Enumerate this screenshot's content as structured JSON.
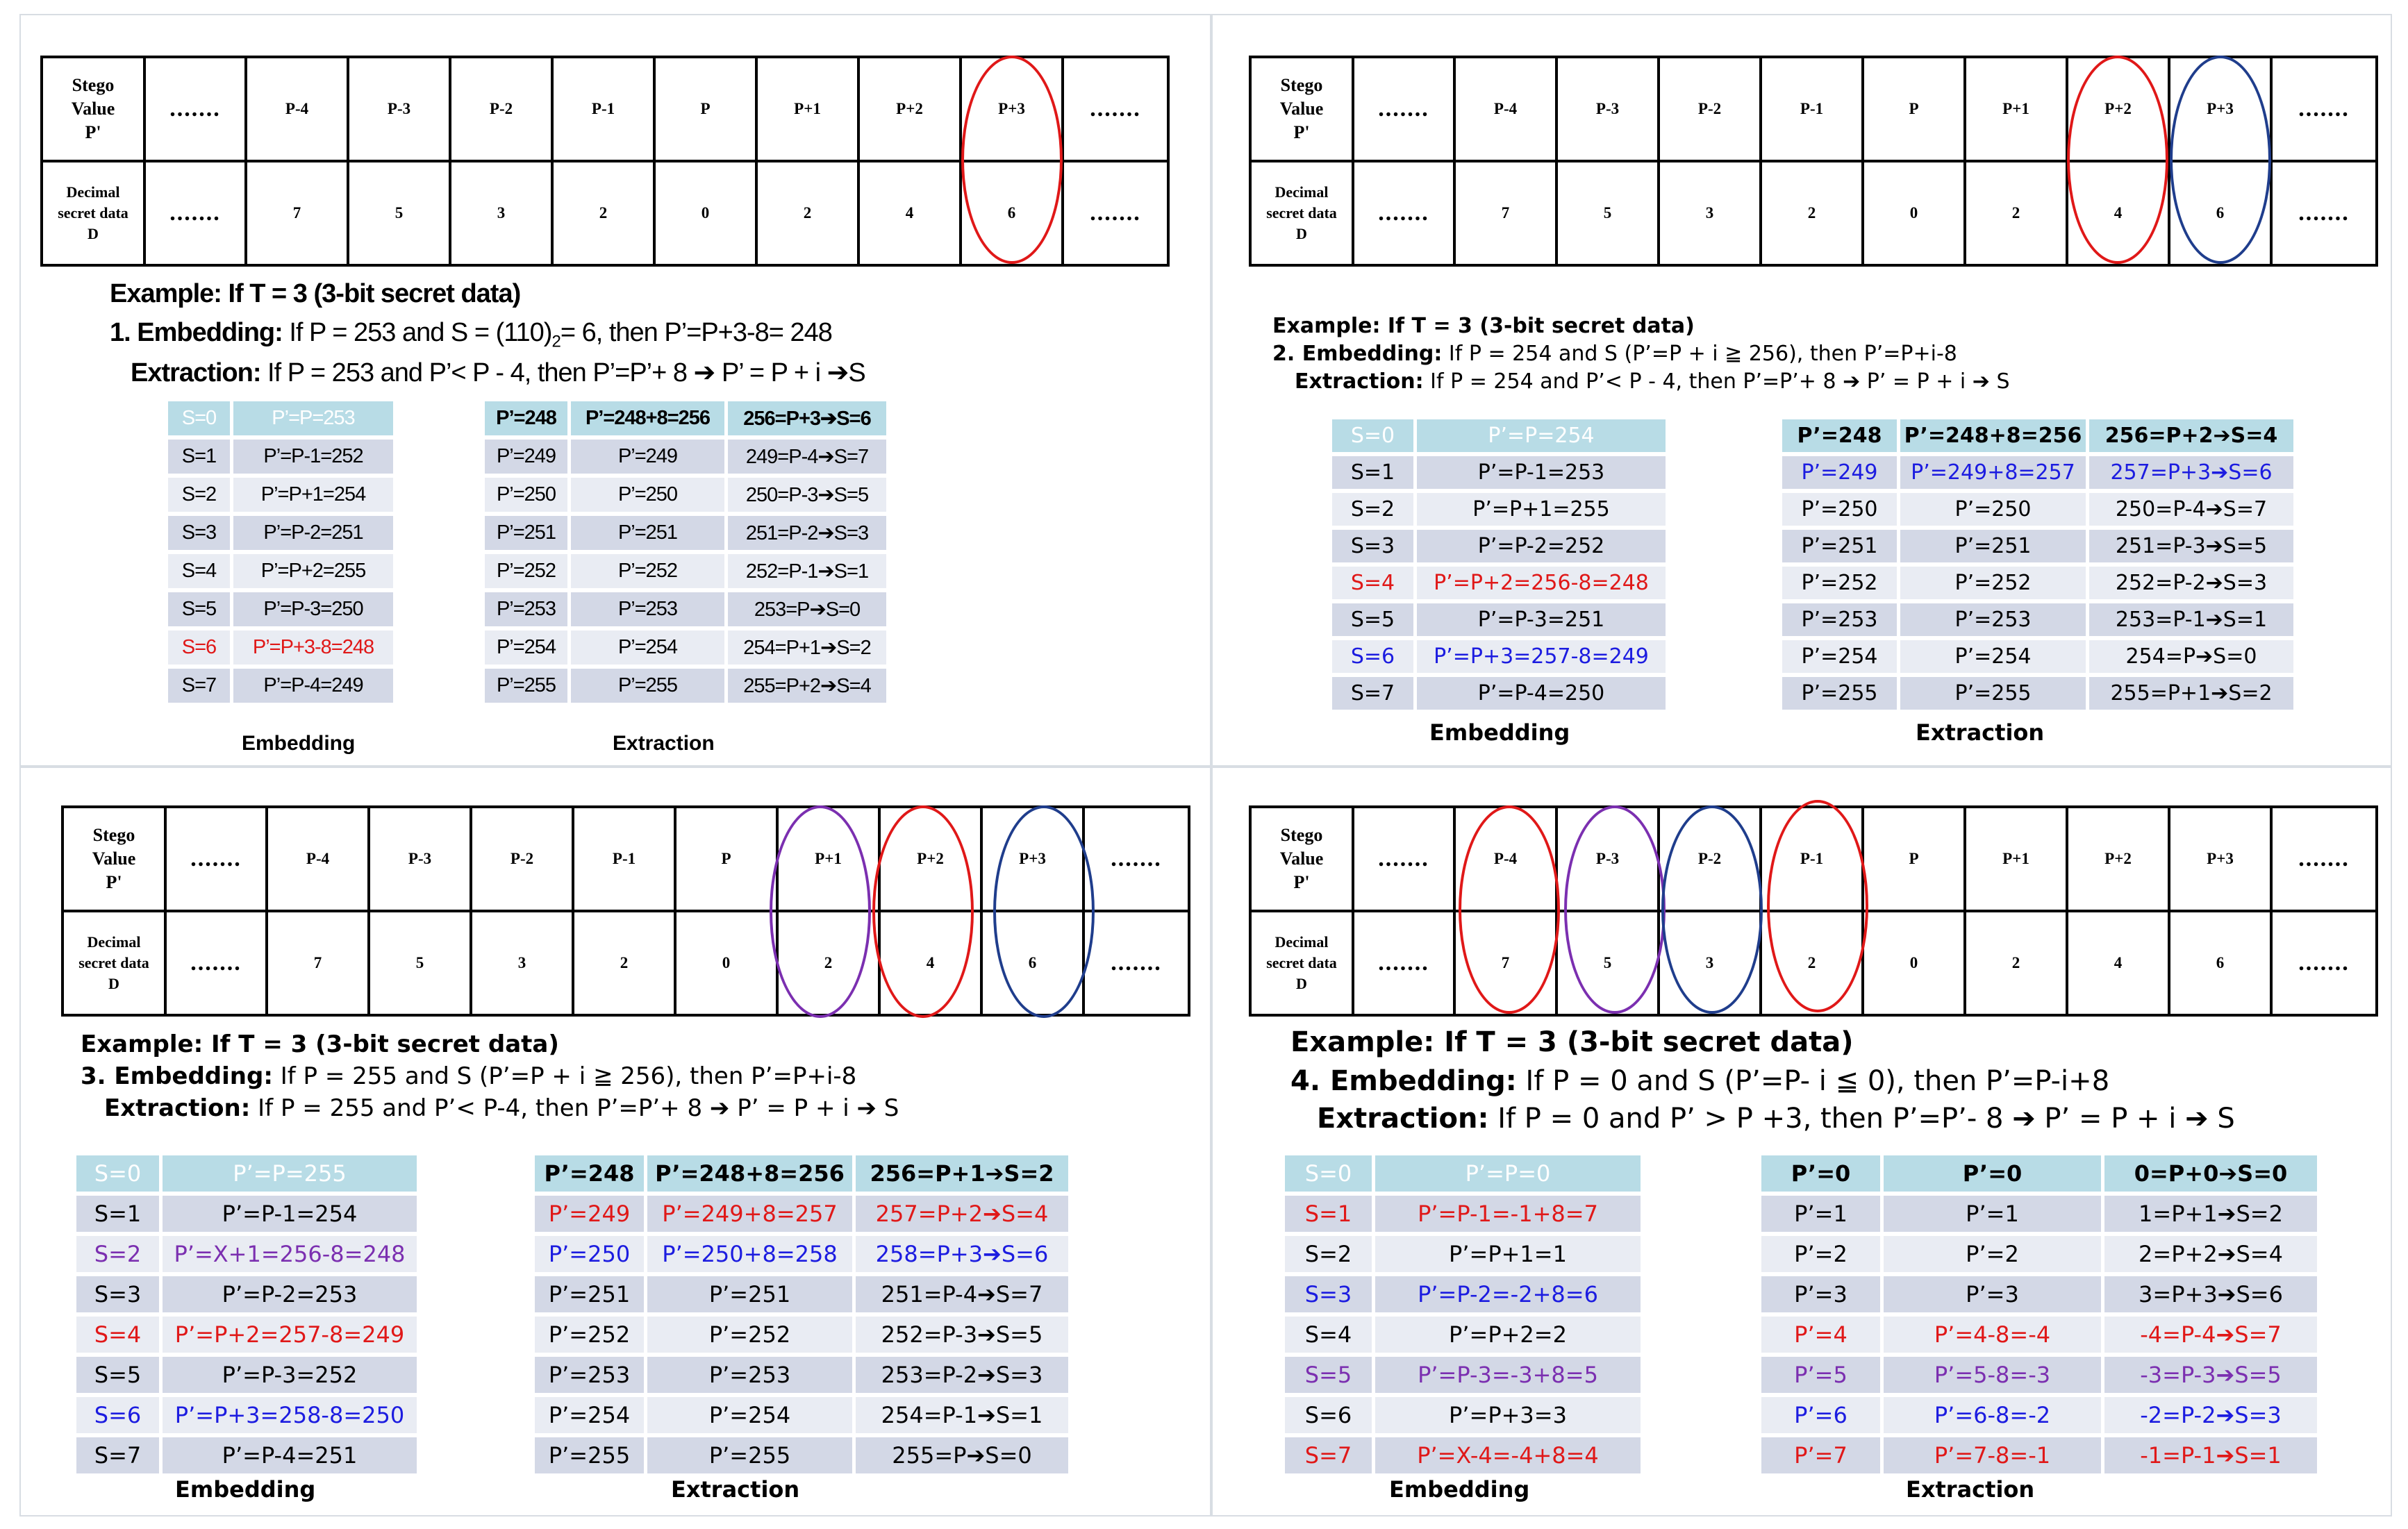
{
  "strip": {
    "row1_label": [
      "Stego",
      "Value",
      "P'"
    ],
    "row2_label": [
      "Decimal",
      "secret data",
      "D"
    ],
    "dots": ".......",
    "pixels": [
      "P-4",
      "P-3",
      "P-2",
      "P-1",
      "P",
      "P+1",
      "P+2",
      "P+3"
    ],
    "decimals": [
      "7",
      "5",
      "3",
      "2",
      "0",
      "2",
      "4",
      "6"
    ]
  },
  "example_title": "Example: If T = 3 (3-bit secret data)",
  "panels": [
    {
      "embed_label": "1. Embedding:",
      "embed_text": "If P = 253 and S = (110)",
      "embed_sub": "2",
      "embed_tail": "= 6, then P’=P+3-8= 248",
      "extract_label": "Extraction:",
      "extract_text": "If P = 253 and P’< P - 4, then P’=P’+ 8 ➔ P’ = P + i ➔S",
      "embedding": [
        [
          "S=0",
          "P’=P=253"
        ],
        [
          "S=1",
          "P’=P-1=252"
        ],
        [
          "S=2",
          "P’=P+1=254"
        ],
        [
          "S=3",
          "P’=P-2=251"
        ],
        [
          "S=4",
          "P’=P+2=255"
        ],
        [
          "S=5",
          "P’=P-3=250"
        ],
        [
          "S=6",
          "P’=P+3-8=248"
        ],
        [
          "S=7",
          "P’=P-4=249"
        ]
      ],
      "extraction": [
        [
          "P’=248",
          "P’=248+8=256",
          "256=P+3➔S=6"
        ],
        [
          "P’=249",
          "P’=249",
          "249=P-4➔S=7"
        ],
        [
          "P’=250",
          "P’=250",
          "250=P-3➔S=5"
        ],
        [
          "P’=251",
          "P’=251",
          "251=P-2➔S=3"
        ],
        [
          "P’=252",
          "P’=252",
          "252=P-1➔S=1"
        ],
        [
          "P’=253",
          "P’=253",
          "253=P➔S=0"
        ],
        [
          "P’=254",
          "P’=254",
          "254=P+1➔S=2"
        ],
        [
          "P’=255",
          "P’=255",
          "255=P+2➔S=4"
        ]
      ],
      "embed_caption": "Embedding",
      "extract_caption": "Extraction"
    },
    {
      "embed_label": "2. Embedding:",
      "embed_text": "If P = 254 and S (P’=P + i  ≧ 256), then P’=P+i-8",
      "extract_label": "Extraction:",
      "extract_text": "If P = 254 and P’< P - 4, then P’=P’+ 8 ➔ P’ = P + i ➔ S",
      "embedding": [
        [
          "S=0",
          "P’=P=254"
        ],
        [
          "S=1",
          "P’=P-1=253"
        ],
        [
          "S=2",
          "P’=P+1=255"
        ],
        [
          "S=3",
          "P’=P-2=252"
        ],
        [
          "S=4",
          "P’=P+2=256-8=248"
        ],
        [
          "S=5",
          "P’=P-3=251"
        ],
        [
          "S=6",
          "P’=P+3=257-8=249"
        ],
        [
          "S=7",
          "P’=P-4=250"
        ]
      ],
      "extraction": [
        [
          "P’=248",
          "P’=248+8=256",
          "256=P+2➔S=4"
        ],
        [
          "P’=249",
          "P’=249+8=257",
          "257=P+3➔S=6"
        ],
        [
          "P’=250",
          "P’=250",
          "250=P-4➔S=7"
        ],
        [
          "P’=251",
          "P’=251",
          "251=P-3➔S=5"
        ],
        [
          "P’=252",
          "P’=252",
          "252=P-2➔S=3"
        ],
        [
          "P’=253",
          "P’=253",
          "253=P-1➔S=1"
        ],
        [
          "P’=254",
          "P’=254",
          "254=P➔S=0"
        ],
        [
          "P’=255",
          "P’=255",
          "255=P+1➔S=2"
        ]
      ],
      "embed_caption": "Embedding",
      "extract_caption": "Extraction"
    },
    {
      "embed_label": "3. Embedding:",
      "embed_text": "If P = 255 and S (P’=P + i  ≧ 256), then P’=P+i-8",
      "extract_label": "Extraction:",
      "extract_text": "If P = 255 and P’< P-4, then P’=P’+ 8 ➔ P’ = P + i ➔ S",
      "embedding": [
        [
          "S=0",
          "P’=P=255"
        ],
        [
          "S=1",
          "P’=P-1=254"
        ],
        [
          "S=2",
          "P’=X+1=256-8=248"
        ],
        [
          "S=3",
          "P’=P-2=253"
        ],
        [
          "S=4",
          "P’=P+2=257-8=249"
        ],
        [
          "S=5",
          "P’=P-3=252"
        ],
        [
          "S=6",
          "P’=P+3=258-8=250"
        ],
        [
          "S=7",
          "P’=P-4=251"
        ]
      ],
      "extraction": [
        [
          "P’=248",
          "P’=248+8=256",
          "256=P+1➔S=2"
        ],
        [
          "P’=249",
          "P’=249+8=257",
          "257=P+2➔S=4"
        ],
        [
          "P’=250",
          "P’=250+8=258",
          "258=P+3➔S=6"
        ],
        [
          "P’=251",
          "P’=251",
          "251=P-4➔S=7"
        ],
        [
          "P’=252",
          "P’=252",
          "252=P-3➔S=5"
        ],
        [
          "P’=253",
          "P’=253",
          "253=P-2➔S=3"
        ],
        [
          "P’=254",
          "P’=254",
          "254=P-1➔S=1"
        ],
        [
          "P’=255",
          "P’=255",
          "255=P➔S=0"
        ]
      ],
      "embed_caption": "Embedding",
      "extract_caption": "Extraction"
    },
    {
      "embed_label": "4. Embedding:",
      "embed_text": "If P = 0 and S (P’=P- i  ≦ 0), then P’=P-i+8",
      "extract_label": "Extraction:",
      "extract_text": "If P = 0 and P’ > P +3, then P’=P’- 8 ➔ P’ = P + i ➔ S",
      "embedding": [
        [
          "S=0",
          "P’=P=0"
        ],
        [
          "S=1",
          "P’=P-1=-1+8=7"
        ],
        [
          "S=2",
          "P’=P+1=1"
        ],
        [
          "S=3",
          "P’=P-2=-2+8=6"
        ],
        [
          "S=4",
          "P’=P+2=2"
        ],
        [
          "S=5",
          "P’=P-3=-3+8=5"
        ],
        [
          "S=6",
          "P’=P+3=3"
        ],
        [
          "S=7",
          "P’=X-4=-4+8=4"
        ]
      ],
      "extraction": [
        [
          "P’=0",
          "P’=0",
          "0=P+0➔S=0"
        ],
        [
          "P’=1",
          "P’=1",
          "1=P+1➔S=2"
        ],
        [
          "P’=2",
          "P’=2",
          "2=P+2➔S=4"
        ],
        [
          "P’=3",
          "P’=3",
          "3=P+3➔S=6"
        ],
        [
          "P’=4",
          "P’=4-8=-4",
          "-4=P-4➔S=7"
        ],
        [
          "P’=5",
          "P’=5-8=-3",
          "-3=P-3➔S=5"
        ],
        [
          "P’=6",
          "P’=6-8=-2",
          "-2=P-2➔S=3"
        ],
        [
          "P’=7",
          "P’=7-8=-1",
          "-1=P-1➔S=1"
        ]
      ],
      "embed_caption": "Embedding",
      "extract_caption": "Extraction"
    }
  ],
  "colors": {
    "red": "#e01818",
    "blue": "#1c1ce0",
    "purple": "#7b2fb0",
    "header_bg": "#b8dce6",
    "row_dark": "#d3d8e6",
    "row_light": "#e9ecf3"
  }
}
